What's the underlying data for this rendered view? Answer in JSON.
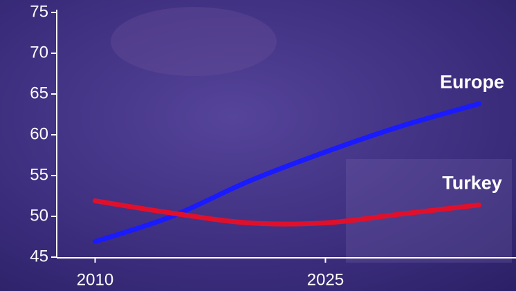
{
  "chart_data": {
    "type": "line",
    "x": [
      2010,
      2015,
      2020,
      2025,
      2030,
      2035
    ],
    "series": [
      {
        "name": "Europe",
        "color": "#1a1aff",
        "values": [
          46.9,
          50.0,
          54.3,
          57.9,
          61.1,
          63.8
        ]
      },
      {
        "name": "Turkey",
        "color": "#e0102c",
        "values": [
          51.9,
          50.4,
          49.2,
          49.2,
          50.3,
          51.4
        ]
      }
    ],
    "xlim": [
      2007.5,
      2037.5
    ],
    "xticks": [
      2010,
      2025
    ],
    "ylim": [
      45,
      75
    ],
    "yticks": [
      45,
      50,
      55,
      60,
      65,
      70,
      75
    ]
  }
}
